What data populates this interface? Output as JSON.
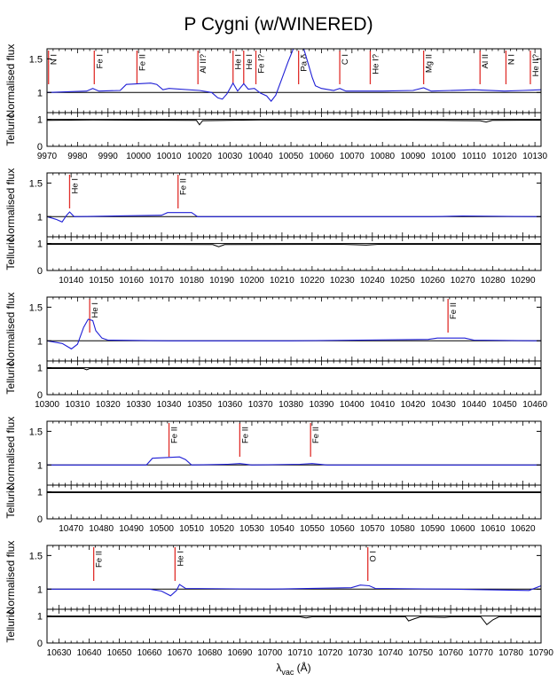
{
  "title": "P Cygni (w/WINERED)",
  "chart_data": {
    "type": "line",
    "title": "P Cygni (w/WINERED)",
    "xlabel": "λvac (Å)",
    "xlabel_main": "λ",
    "xlabel_sub": "vac",
    "xlabel_unit": " (Å)",
    "ylabel_flux": "Normalised flux",
    "ylabel_telluric": "Telluric",
    "flux_yticks": [
      1,
      1.5
    ],
    "telluric_yticks": [
      0,
      1
    ],
    "flux_ylim": [
      0.7,
      1.65
    ],
    "telluric_ylim": [
      0,
      1.25
    ],
    "colors": {
      "spectrum": "#1f1fd6",
      "telluric": "#000000",
      "line_marker": "#e0302c",
      "continuum": "#000000"
    },
    "panels": [
      {
        "xlim": [
          9970,
          10132
        ],
        "xticks": [
          9970,
          9980,
          9990,
          10000,
          10010,
          10020,
          10030,
          10040,
          10050,
          10060,
          10070,
          10080,
          10090,
          10100,
          10110,
          10120,
          10130
        ],
        "lines": [
          {
            "wl": 9970.5,
            "label": "N I"
          },
          {
            "wl": 9985.5,
            "label": "Fe I"
          },
          {
            "wl": 9999.5,
            "label": "Fe II"
          },
          {
            "wl": 10019.5,
            "label": "Al II?"
          },
          {
            "wl": 10031.0,
            "label": "He I"
          },
          {
            "wl": 10034.5,
            "label": "He I"
          },
          {
            "wl": 10038.5,
            "label": "Fe I?"
          },
          {
            "wl": 10052.5,
            "label": "Pa δ"
          },
          {
            "wl": 10066.0,
            "label": "C I"
          },
          {
            "wl": 10076.0,
            "label": "He I?"
          },
          {
            "wl": 10093.5,
            "label": "Mg II"
          },
          {
            "wl": 10112.0,
            "label": "Al II"
          },
          {
            "wl": 10120.5,
            "label": "N I"
          },
          {
            "wl": 10128.5,
            "label": "He II?"
          }
        ],
        "flux": [
          [
            9970,
            1.0
          ],
          [
            9983,
            1.02
          ],
          [
            9985,
            1.06
          ],
          [
            9987,
            1.02
          ],
          [
            9994,
            1.03
          ],
          [
            9996,
            1.12
          ],
          [
            10004,
            1.14
          ],
          [
            10006,
            1.12
          ],
          [
            10008,
            1.04
          ],
          [
            10010,
            1.06
          ],
          [
            10020,
            1.03
          ],
          [
            10024,
            1.0
          ],
          [
            10026,
            0.92
          ],
          [
            10027.5,
            0.9
          ],
          [
            10029,
            0.98
          ],
          [
            10031,
            1.14
          ],
          [
            10032.5,
            1.02
          ],
          [
            10034.5,
            1.13
          ],
          [
            10036,
            1.05
          ],
          [
            10038,
            1.06
          ],
          [
            10040,
            0.99
          ],
          [
            10042,
            0.95
          ],
          [
            10043.5,
            0.87
          ],
          [
            10045,
            0.96
          ],
          [
            10047,
            1.2
          ],
          [
            10049,
            1.45
          ],
          [
            10050.5,
            1.62
          ],
          [
            10051,
            1.68
          ],
          [
            10054,
            1.68
          ],
          [
            10055.5,
            1.45
          ],
          [
            10057,
            1.22
          ],
          [
            10058,
            1.1
          ],
          [
            10060,
            1.06
          ],
          [
            10064,
            1.03
          ],
          [
            10066,
            1.06
          ],
          [
            10068,
            1.02
          ],
          [
            10080,
            1.02
          ],
          [
            10090,
            1.03
          ],
          [
            10093.5,
            1.07
          ],
          [
            10096,
            1.02
          ],
          [
            10110,
            1.04
          ],
          [
            10120,
            1.02
          ],
          [
            10126,
            1.03
          ],
          [
            10132,
            1.04
          ]
        ],
        "telluric": [
          [
            9970,
            0.96
          ],
          [
            9985,
            0.98
          ],
          [
            10000,
            0.97
          ],
          [
            10019,
            0.96
          ],
          [
            10020,
            0.8
          ],
          [
            10021,
            0.95
          ],
          [
            10040,
            0.98
          ],
          [
            10080,
            0.97
          ],
          [
            10100,
            0.96
          ],
          [
            10112,
            0.95
          ],
          [
            10114,
            0.9
          ],
          [
            10116,
            0.96
          ],
          [
            10132,
            0.97
          ]
        ]
      },
      {
        "xlim": [
          10132,
          10296
        ],
        "xticks": [
          10140,
          10150,
          10160,
          10170,
          10180,
          10190,
          10200,
          10210,
          10220,
          10230,
          10240,
          10250,
          10260,
          10270,
          10280,
          10290
        ],
        "lines": [
          {
            "wl": 10139.5,
            "label": "He I"
          },
          {
            "wl": 10175.5,
            "label": "Fe II"
          }
        ],
        "flux": [
          [
            10132,
            1.0
          ],
          [
            10135,
            0.96
          ],
          [
            10137,
            0.92
          ],
          [
            10138.5,
            1.02
          ],
          [
            10139.5,
            1.07
          ],
          [
            10141,
            1.0
          ],
          [
            10170,
            1.02
          ],
          [
            10172,
            1.06
          ],
          [
            10180,
            1.06
          ],
          [
            10182,
            1.0
          ],
          [
            10260,
            1.0
          ],
          [
            10270,
            1.01
          ],
          [
            10296,
            1.0
          ]
        ],
        "telluric": [
          [
            10132,
            0.97
          ],
          [
            10160,
            0.97
          ],
          [
            10187,
            0.96
          ],
          [
            10189,
            0.88
          ],
          [
            10191,
            0.96
          ],
          [
            10230,
            0.97
          ],
          [
            10238,
            0.94
          ],
          [
            10242,
            0.97
          ],
          [
            10296,
            0.97
          ]
        ]
      },
      {
        "xlim": [
          10300,
          10462
        ],
        "xticks": [
          10300,
          10310,
          10320,
          10330,
          10340,
          10350,
          10360,
          10370,
          10380,
          10390,
          10400,
          10410,
          10420,
          10430,
          10440,
          10450,
          10460
        ],
        "lines": [
          {
            "wl": 10314.0,
            "label": "He I"
          },
          {
            "wl": 10431.5,
            "label": "Fe II"
          }
        ],
        "flux": [
          [
            10300,
            1.0
          ],
          [
            10305,
            0.96
          ],
          [
            10308,
            0.88
          ],
          [
            10310,
            0.95
          ],
          [
            10312,
            1.2
          ],
          [
            10313.5,
            1.32
          ],
          [
            10315,
            1.3
          ],
          [
            10316,
            1.15
          ],
          [
            10318,
            1.04
          ],
          [
            10320,
            1.01
          ],
          [
            10340,
            1.0
          ],
          [
            10380,
            1.0
          ],
          [
            10425,
            1.02
          ],
          [
            10428,
            1.04
          ],
          [
            10437,
            1.04
          ],
          [
            10440,
            1.01
          ],
          [
            10462,
            1.0
          ]
        ],
        "telluric": [
          [
            10300,
            0.97
          ],
          [
            10312,
            0.97
          ],
          [
            10313,
            0.92
          ],
          [
            10314,
            0.97
          ],
          [
            10462,
            0.97
          ]
        ]
      },
      {
        "xlim": [
          10462,
          10626
        ],
        "xticks": [
          10470,
          10480,
          10490,
          10500,
          10510,
          10520,
          10530,
          10540,
          10550,
          10560,
          10570,
          10580,
          10590,
          10600,
          10610,
          10620
        ],
        "lines": [
          {
            "wl": 10502.5,
            "label": "Fe II"
          },
          {
            "wl": 10526.0,
            "label": "Fe II"
          },
          {
            "wl": 10549.5,
            "label": "Fe II"
          }
        ],
        "flux": [
          [
            10462,
            1.0
          ],
          [
            10495,
            1.0
          ],
          [
            10497,
            1.1
          ],
          [
            10506,
            1.12
          ],
          [
            10508,
            1.08
          ],
          [
            10510,
            1.0
          ],
          [
            10522,
            1.01
          ],
          [
            10526,
            1.02
          ],
          [
            10530,
            1.0
          ],
          [
            10546,
            1.01
          ],
          [
            10550,
            1.02
          ],
          [
            10555,
            1.0
          ],
          [
            10626,
            1.0
          ]
        ],
        "telluric": [
          [
            10462,
            0.97
          ],
          [
            10626,
            0.97
          ]
        ]
      },
      {
        "xlim": [
          10626,
          10790
        ],
        "xticks": [
          10630,
          10640,
          10650,
          10660,
          10670,
          10680,
          10690,
          10700,
          10710,
          10720,
          10730,
          10740,
          10750,
          10760,
          10770,
          10780,
          10790
        ],
        "lines": [
          {
            "wl": 10641.5,
            "label": "Fe II"
          },
          {
            "wl": 10668.5,
            "label": "He I"
          },
          {
            "wl": 10732.5,
            "label": "O I"
          }
        ],
        "flux": [
          [
            10626,
            1.0
          ],
          [
            10660,
            1.0
          ],
          [
            10664,
            0.97
          ],
          [
            10667,
            0.9
          ],
          [
            10669,
            0.98
          ],
          [
            10670,
            1.07
          ],
          [
            10672,
            1.01
          ],
          [
            10700,
            1.0
          ],
          [
            10727,
            1.02
          ],
          [
            10730,
            1.06
          ],
          [
            10733,
            1.05
          ],
          [
            10735,
            1.01
          ],
          [
            10760,
            1.0
          ],
          [
            10786,
            0.98
          ],
          [
            10790,
            1.05
          ]
        ],
        "telluric": [
          [
            10626,
            0.97
          ],
          [
            10710,
            0.97
          ],
          [
            10712,
            0.93
          ],
          [
            10714,
            0.97
          ],
          [
            10745,
            0.97
          ],
          [
            10746,
            0.82
          ],
          [
            10748,
            0.9
          ],
          [
            10750,
            0.97
          ],
          [
            10758,
            0.95
          ],
          [
            10760,
            0.97
          ],
          [
            10770,
            0.97
          ],
          [
            10772,
            0.68
          ],
          [
            10774,
            0.86
          ],
          [
            10776,
            0.97
          ],
          [
            10790,
            0.97
          ]
        ]
      }
    ]
  }
}
